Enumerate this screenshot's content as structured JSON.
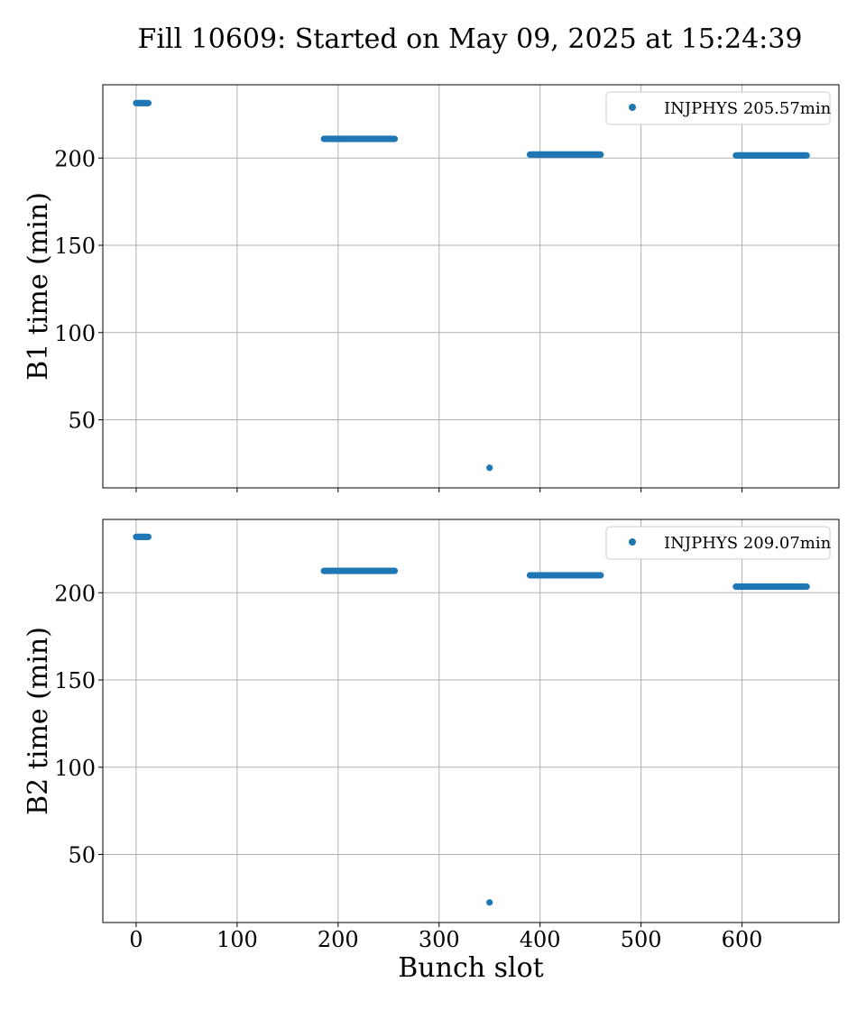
{
  "figure_title": "Fill 10609: Started on May 09, 2025 at 15:24:39",
  "chart_data": [
    {
      "type": "scatter",
      "ylabel": "B1 time (min)",
      "xlabel": "",
      "xlim": [
        -33,
        696
      ],
      "ylim": [
        11,
        242
      ],
      "xticks": [
        0,
        100,
        200,
        300,
        400,
        500,
        600
      ],
      "yticks": [
        50,
        100,
        150,
        200
      ],
      "show_xtick_labels": false,
      "grid": true,
      "legend_position": "top-right",
      "color": "#1f77b4",
      "series": [
        {
          "name": "INJPHYS 205.57min",
          "groups": [
            {
              "x_start": 0,
              "x_end": 12,
              "step": 1,
              "y": 231.5
            },
            {
              "x_start": 186,
              "x_end": 256,
              "step": 1,
              "y": 211
            },
            {
              "x_start": 350,
              "x_end": 350,
              "step": 1,
              "y": 22.5
            },
            {
              "x_start": 390,
              "x_end": 460,
              "step": 1,
              "y": 202
            },
            {
              "x_start": 594,
              "x_end": 664,
              "step": 1,
              "y": 201.5
            }
          ]
        }
      ]
    },
    {
      "type": "scatter",
      "ylabel": "B2 time (min)",
      "xlabel": "Bunch slot",
      "xlim": [
        -33,
        696
      ],
      "ylim": [
        11,
        242
      ],
      "xticks": [
        0,
        100,
        200,
        300,
        400,
        500,
        600
      ],
      "yticks": [
        50,
        100,
        150,
        200
      ],
      "show_xtick_labels": true,
      "grid": true,
      "legend_position": "top-right",
      "color": "#1f77b4",
      "series": [
        {
          "name": "INJPHYS 209.07min",
          "groups": [
            {
              "x_start": 0,
              "x_end": 12,
              "step": 1,
              "y": 232
            },
            {
              "x_start": 186,
              "x_end": 256,
              "step": 1,
              "y": 212.5
            },
            {
              "x_start": 350,
              "x_end": 350,
              "step": 1,
              "y": 22.5
            },
            {
              "x_start": 390,
              "x_end": 460,
              "step": 1,
              "y": 210
            },
            {
              "x_start": 594,
              "x_end": 664,
              "step": 1,
              "y": 203.5
            }
          ]
        }
      ]
    }
  ]
}
